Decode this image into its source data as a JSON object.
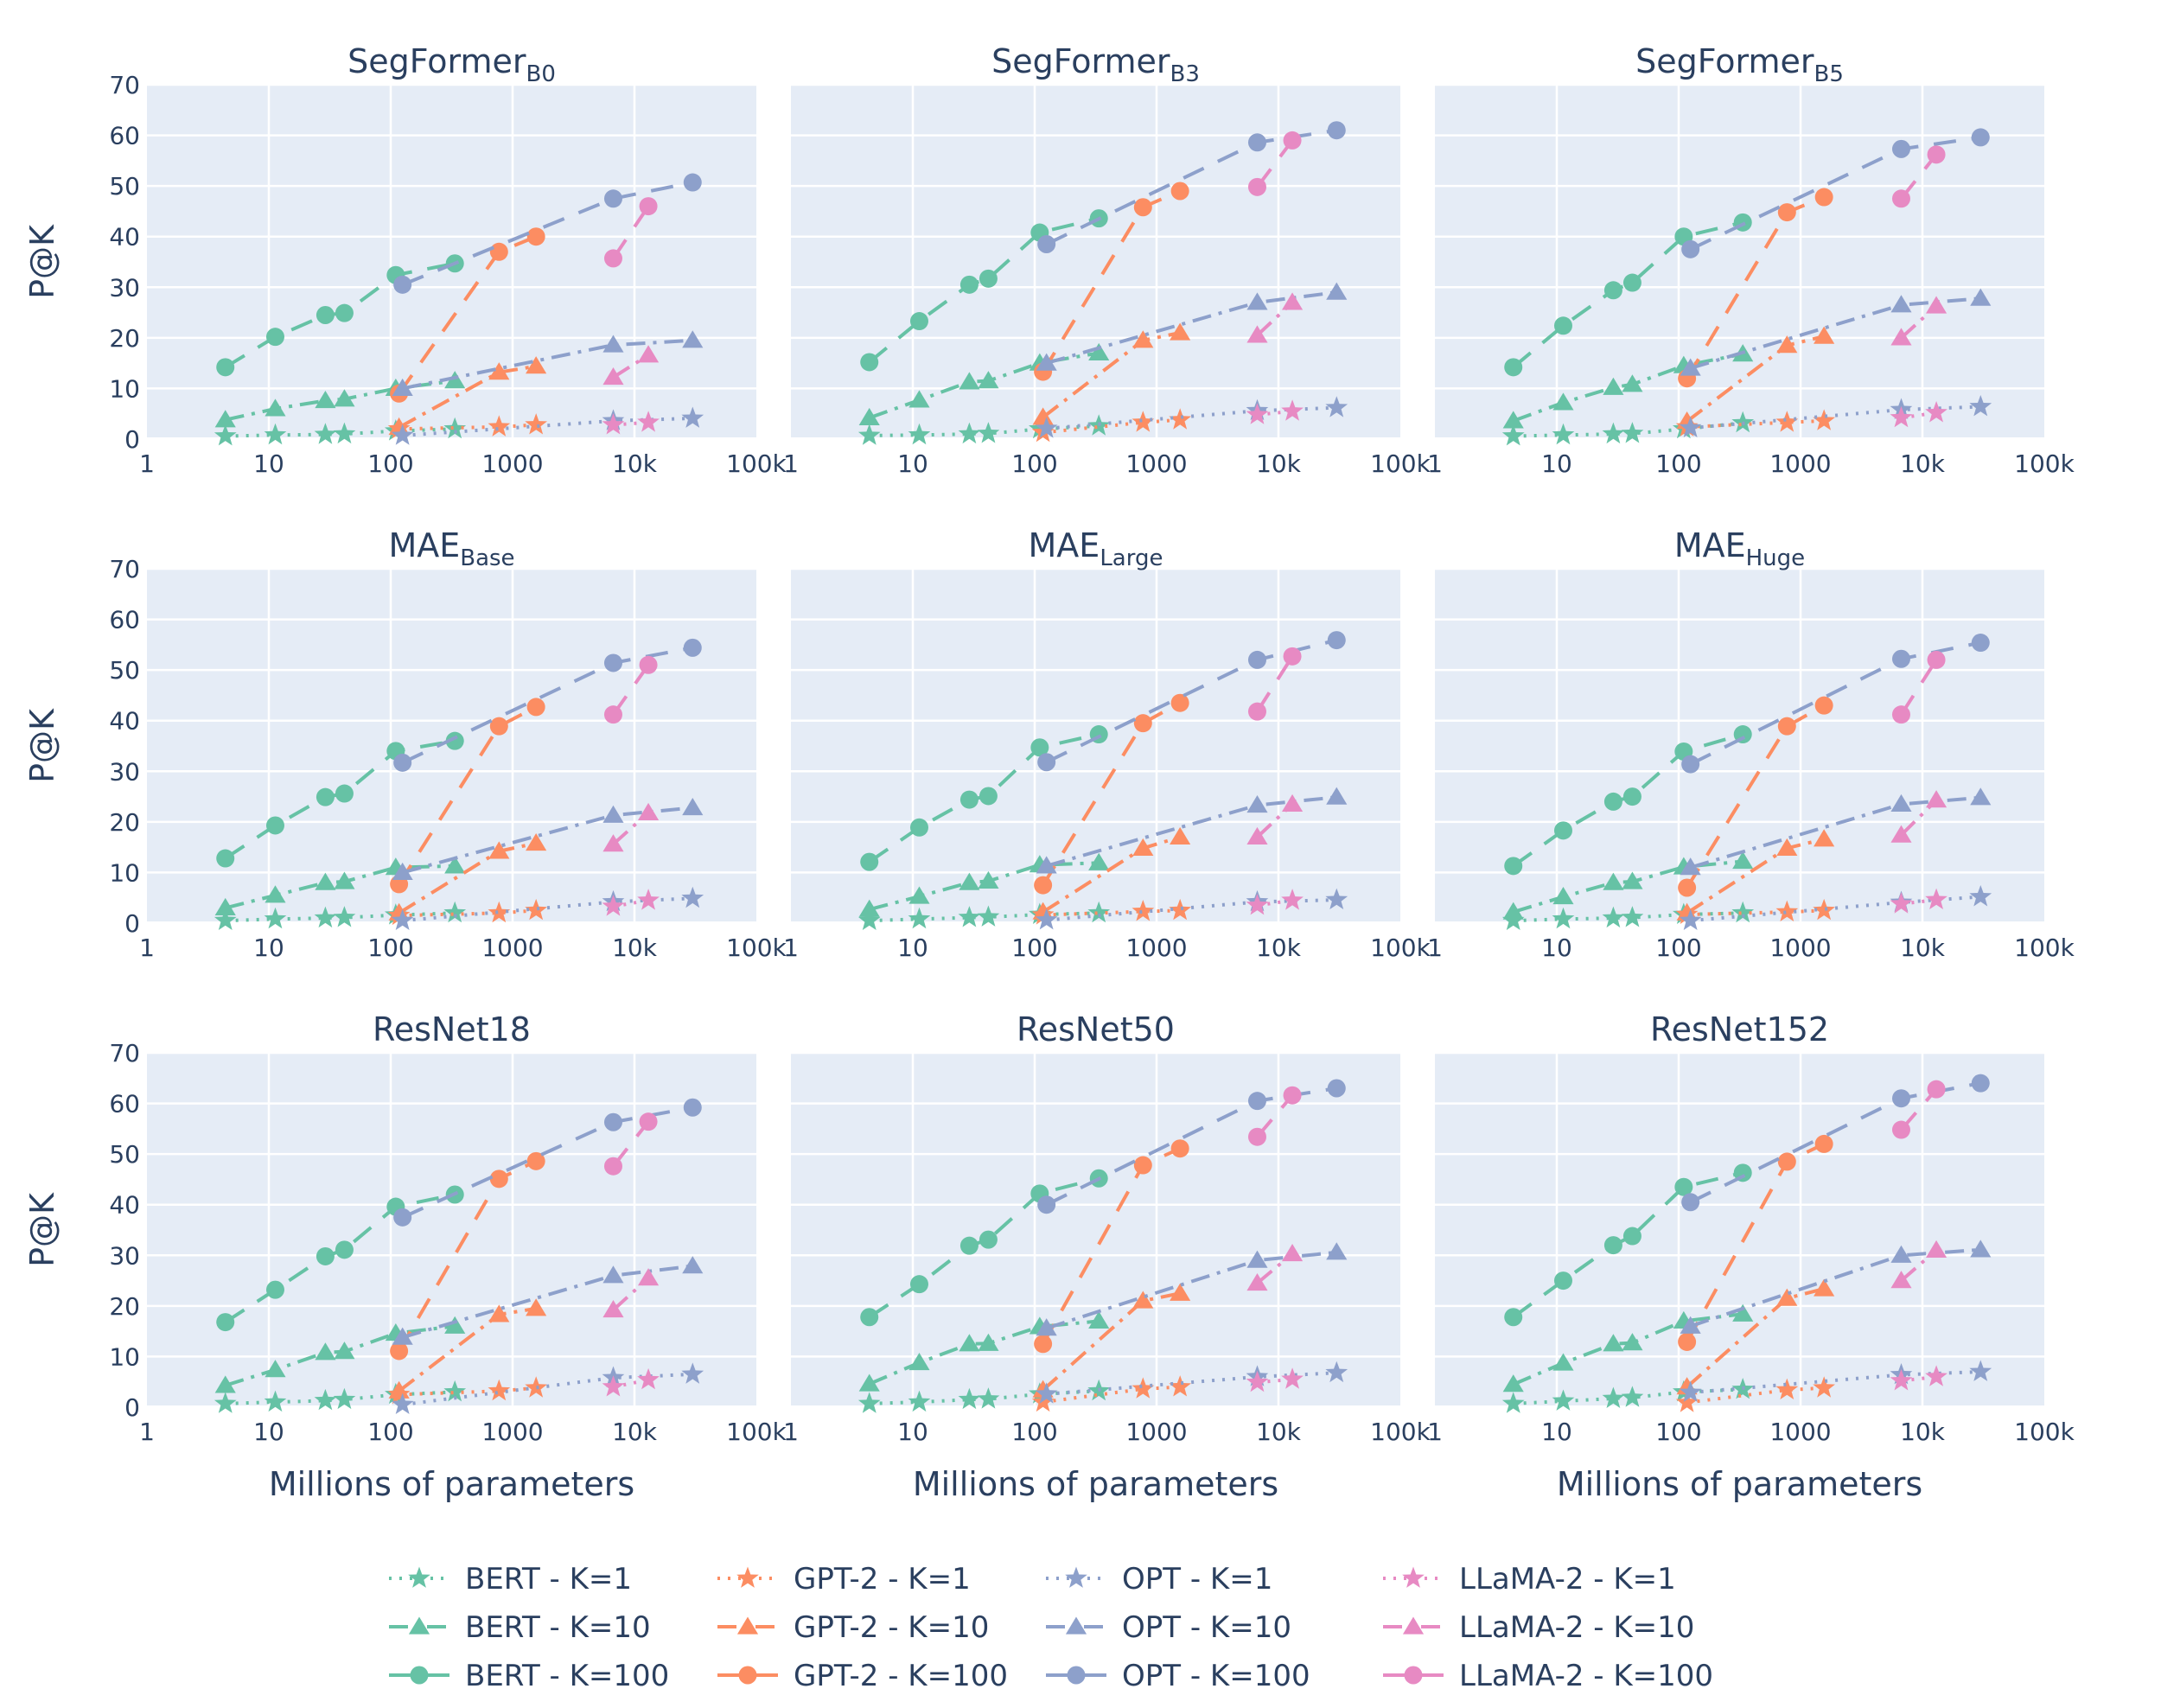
{
  "chart_data": {
    "type": "line",
    "figure": {
      "xlabel": "Millions of parameters",
      "ylabel": "P@K",
      "xscale": "log",
      "xlim": [
        1,
        100000
      ],
      "ylim": [
        0,
        70
      ],
      "xticks": [
        1,
        10,
        100,
        1000,
        10000,
        100000
      ],
      "xtick_labels": [
        "1",
        "10",
        "100",
        "1000",
        "10k",
        "100k"
      ],
      "yticks": [
        0,
        10,
        20,
        30,
        40,
        50,
        60,
        70
      ],
      "grid": true,
      "legend_position": "bottom-center"
    },
    "model_families": [
      {
        "name": "BERT",
        "color": "#66c2a5",
        "params_m": [
          4.4,
          11.3,
          29.1,
          41.7,
          110,
          336
        ]
      },
      {
        "name": "GPT-2",
        "color": "#fc8d62",
        "params_m": [
          117,
          774,
          1558
        ]
      },
      {
        "name": "OPT",
        "color": "#8da0cb",
        "params_m": [
          125,
          6700,
          30000
        ]
      },
      {
        "name": "LLaMA-2",
        "color": "#e78ac3",
        "params_m": [
          6700,
          13000
        ]
      }
    ],
    "k_styles": [
      {
        "k": 1,
        "dash": "dot",
        "marker": "star"
      },
      {
        "k": 10,
        "dash": "dashdot",
        "marker": "triangle"
      },
      {
        "k": 100,
        "dash": "dash",
        "marker": "circle"
      }
    ],
    "legend_entries": [
      "BERT - K=1",
      "BERT - K=10",
      "BERT - K=100",
      "GPT-2 - K=1",
      "GPT-2 - K=10",
      "GPT-2 - K=100",
      "OPT - K=1",
      "OPT - K=10",
      "OPT - K=100",
      "LLaMA-2 - K=1",
      "LLaMA-2 - K=10",
      "LLaMA-2 - K=100"
    ],
    "panels": [
      {
        "title": "SegFormer",
        "subscript": "B0",
        "series": {
          "BERT": {
            "1": [
              0.6,
              0.8,
              0.9,
              1.0,
              1.6,
              2.0
            ],
            "10": [
              3.8,
              6.0,
              7.6,
              7.9,
              10.0,
              11.5
            ],
            "100": [
              14.2,
              20.2,
              24.5,
              24.9,
              32.4,
              34.7
            ]
          },
          "GPT-2": {
            "1": [
              2.0,
              2.4,
              2.8
            ],
            "10": [
              2.3,
              13.2,
              14.4
            ],
            "100": [
              9.0,
              37.0,
              40.0
            ]
          },
          "OPT": {
            "1": [
              0.7,
              3.6,
              4.1
            ],
            "10": [
              10.0,
              18.6,
              19.5
            ],
            "100": [
              30.5,
              47.5,
              50.7
            ]
          },
          "LLaMA-2": {
            "1": [
              2.8,
              3.3
            ],
            "10": [
              12.2,
              16.6
            ],
            "100": [
              35.7,
              46.0
            ]
          }
        }
      },
      {
        "title": "SegFormer",
        "subscript": "B3",
        "series": {
          "BERT": {
            "1": [
              0.7,
              0.8,
              1.0,
              1.1,
              2.0,
              2.6
            ],
            "10": [
              4.2,
              7.7,
              11.3,
              11.5,
              15.0,
              17.0
            ],
            "100": [
              15.2,
              23.3,
              30.5,
              31.7,
              40.8,
              43.6
            ]
          },
          "GPT-2": {
            "1": [
              1.3,
              3.3,
              3.8
            ],
            "10": [
              4.3,
              19.5,
              21.0
            ],
            "100": [
              13.3,
              45.8,
              49.0
            ]
          },
          "OPT": {
            "1": [
              2.1,
              5.6,
              6.2
            ],
            "10": [
              15.0,
              27.0,
              29.0
            ],
            "100": [
              38.5,
              58.6,
              61.0
            ]
          },
          "LLaMA-2": {
            "1": [
              4.8,
              5.5
            ],
            "10": [
              20.5,
              27.0
            ],
            "100": [
              49.8,
              59.0
            ]
          }
        }
      },
      {
        "title": "SegFormer",
        "subscript": "B5",
        "series": {
          "BERT": {
            "1": [
              0.6,
              0.8,
              1.0,
              1.1,
              2.0,
              3.2
            ],
            "10": [
              3.6,
              7.2,
              10.2,
              10.8,
              14.5,
              16.8
            ],
            "100": [
              14.2,
              22.4,
              29.4,
              30.9,
              40.0,
              42.8
            ]
          },
          "GPT-2": {
            "1": [
              2.4,
              3.3,
              3.6
            ],
            "10": [
              3.5,
              18.5,
              20.3
            ],
            "100": [
              12.0,
              44.8,
              47.8
            ]
          },
          "OPT": {
            "1": [
              2.2,
              5.8,
              6.4
            ],
            "10": [
              14.0,
              26.5,
              27.8
            ],
            "100": [
              37.5,
              57.3,
              59.6
            ]
          },
          "LLaMA-2": {
            "1": [
              4.2,
              5.2
            ],
            "10": [
              20.0,
              26.3
            ],
            "100": [
              47.5,
              56.2
            ]
          }
        }
      },
      {
        "title": "MAE",
        "subscript": "Base",
        "series": {
          "BERT": {
            "1": [
              0.5,
              0.8,
              1.0,
              1.1,
              1.6,
              2.0
            ],
            "10": [
              3.0,
              5.5,
              8.0,
              8.2,
              11.0,
              11.3
            ],
            "100": [
              12.8,
              19.3,
              24.9,
              25.6,
              34.0,
              36.0
            ]
          },
          "GPT-2": {
            "1": [
              1.5,
              2.0,
              2.5
            ],
            "10": [
              2.0,
              14.2,
              15.8
            ],
            "100": [
              7.7,
              38.9,
              42.7
            ]
          },
          "OPT": {
            "1": [
              0.5,
              4.2,
              4.9
            ],
            "10": [
              10.0,
              21.3,
              22.8
            ],
            "100": [
              31.7,
              51.4,
              54.4
            ]
          },
          "LLaMA-2": {
            "1": [
              3.3,
              4.5
            ],
            "10": [
              15.6,
              21.8
            ],
            "100": [
              41.2,
              51.0
            ]
          }
        }
      },
      {
        "title": "MAE",
        "subscript": "Large",
        "series": {
          "BERT": {
            "1": [
              0.5,
              0.8,
              1.1,
              1.2,
              1.7,
              2.0
            ],
            "10": [
              2.7,
              5.3,
              8.0,
              8.3,
              11.5,
              11.9
            ],
            "100": [
              12.1,
              18.9,
              24.4,
              25.1,
              34.7,
              37.3
            ]
          },
          "GPT-2": {
            "1": [
              1.6,
              2.3,
              2.5
            ],
            "10": [
              2.2,
              14.8,
              17.0
            ],
            "100": [
              7.5,
              39.5,
              43.5
            ]
          },
          "OPT": {
            "1": [
              0.6,
              4.2,
              4.6
            ],
            "10": [
              11.3,
              23.3,
              24.9
            ],
            "100": [
              31.8,
              52.0,
              55.9
            ]
          },
          "LLaMA-2": {
            "1": [
              3.5,
              4.5
            ],
            "10": [
              17.0,
              23.5
            ],
            "100": [
              41.8,
              52.7
            ]
          }
        }
      },
      {
        "title": "MAE",
        "subscript": "Huge",
        "series": {
          "BERT": {
            "1": [
              0.5,
              0.8,
              1.0,
              1.1,
              1.7,
              2.0
            ],
            "10": [
              2.2,
              5.2,
              8.0,
              8.2,
              11.1,
              12.2
            ],
            "100": [
              11.3,
              18.3,
              24.0,
              25.0,
              33.9,
              37.3
            ]
          },
          "GPT-2": {
            "1": [
              1.7,
              2.2,
              2.5
            ],
            "10": [
              2.0,
              14.8,
              16.6
            ],
            "100": [
              7.0,
              38.9,
              43.0
            ]
          },
          "OPT": {
            "1": [
              0.5,
              4.1,
              5.2
            ],
            "10": [
              11.0,
              23.5,
              24.8
            ],
            "100": [
              31.4,
              52.2,
              55.4
            ]
          },
          "LLaMA-2": {
            "1": [
              3.8,
              4.6
            ],
            "10": [
              17.4,
              24.3
            ],
            "100": [
              41.2,
              52.0
            ]
          }
        }
      },
      {
        "title": "ResNet18",
        "subscript": "",
        "series": {
          "BERT": {
            "1": [
              0.7,
              1.0,
              1.3,
              1.5,
              2.5,
              3.0
            ],
            "10": [
              4.3,
              7.4,
              10.8,
              11.0,
              14.6,
              16.0
            ],
            "100": [
              16.8,
              23.2,
              29.8,
              31.1,
              39.6,
              42.0
            ]
          },
          "GPT-2": {
            "1": [
              2.5,
              3.2,
              3.8
            ],
            "10": [
              3.2,
              18.3,
              19.5
            ],
            "100": [
              11.1,
              45.1,
              48.6
            ]
          },
          "OPT": {
            "1": [
              0.5,
              5.8,
              6.5
            ],
            "10": [
              13.8,
              26.0,
              27.9
            ],
            "100": [
              37.5,
              56.3,
              59.2
            ]
          },
          "LLaMA-2": {
            "1": [
              4.0,
              5.4
            ],
            "10": [
              19.2,
              25.5
            ],
            "100": [
              47.6,
              56.4
            ]
          }
        }
      },
      {
        "title": "ResNet50",
        "subscript": "",
        "series": {
          "BERT": {
            "1": [
              0.7,
              1.0,
              1.5,
              1.6,
              2.6,
              3.2
            ],
            "10": [
              4.6,
              8.8,
              12.5,
              12.6,
              15.9,
              17.0
            ],
            "100": [
              17.8,
              24.3,
              31.9,
              33.1,
              42.2,
              45.2
            ]
          },
          "GPT-2": {
            "1": [
              1.0,
              3.6,
              4.0
            ],
            "10": [
              3.4,
              21.0,
              22.5
            ],
            "100": [
              12.5,
              47.8,
              51.1
            ]
          },
          "OPT": {
            "1": [
              2.6,
              6.0,
              6.8
            ],
            "10": [
              15.6,
              29.0,
              30.6
            ],
            "100": [
              40.0,
              60.5,
              63.0
            ]
          },
          "LLaMA-2": {
            "1": [
              4.9,
              5.5
            ],
            "10": [
              24.5,
              30.3
            ],
            "100": [
              53.4,
              61.6
            ]
          }
        }
      },
      {
        "title": "ResNet152",
        "subscript": "",
        "series": {
          "BERT": {
            "1": [
              0.7,
              1.2,
              1.7,
              1.9,
              3.0,
              3.5
            ],
            "10": [
              4.5,
              8.7,
              12.5,
              12.7,
              17.0,
              18.4
            ],
            "100": [
              17.8,
              25.0,
              32.0,
              33.8,
              43.5,
              46.3
            ]
          },
          "GPT-2": {
            "1": [
              0.9,
              3.4,
              3.8
            ],
            "10": [
              4.0,
              21.5,
              23.4
            ],
            "100": [
              12.9,
              48.5,
              52.0
            ]
          },
          "OPT": {
            "1": [
              2.9,
              6.4,
              7.0
            ],
            "10": [
              16.0,
              30.0,
              31.1
            ],
            "100": [
              40.5,
              61.0,
              64.0
            ]
          },
          "LLaMA-2": {
            "1": [
              5.2,
              6.0
            ],
            "10": [
              25.0,
              31.0
            ],
            "100": [
              54.8,
              62.8
            ]
          }
        }
      }
    ]
  }
}
